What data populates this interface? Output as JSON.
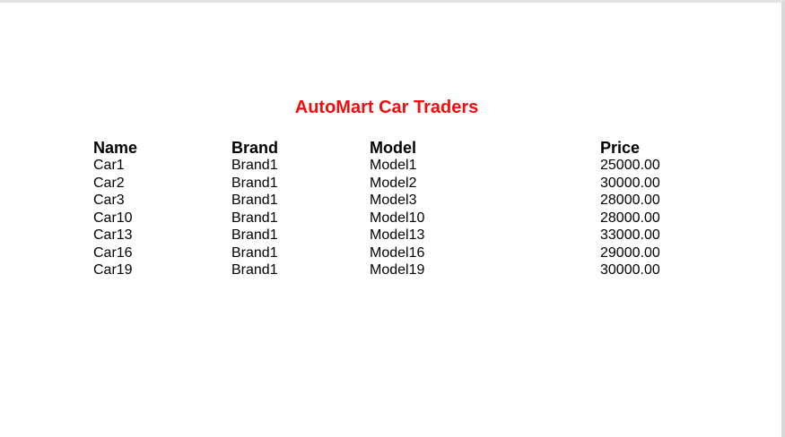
{
  "report": {
    "title": "AutoMart Car Traders",
    "title_color": "#f20c0c",
    "columns": {
      "name": "Name",
      "brand": "Brand",
      "model": "Model",
      "price": "Price"
    },
    "rows": [
      {
        "name": "Car1",
        "brand": "Brand1",
        "model": "Model1",
        "price": "25000.00"
      },
      {
        "name": "Car2",
        "brand": "Brand1",
        "model": "Model2",
        "price": "30000.00"
      },
      {
        "name": "Car3",
        "brand": "Brand1",
        "model": "Model3",
        "price": "28000.00"
      },
      {
        "name": "Car10",
        "brand": "Brand1",
        "model": "Model10",
        "price": "28000.00"
      },
      {
        "name": "Car13",
        "brand": "Brand1",
        "model": "Model13",
        "price": "33000.00"
      },
      {
        "name": "Car16",
        "brand": "Brand1",
        "model": "Model16",
        "price": "29000.00"
      },
      {
        "name": "Car19",
        "brand": "Brand1",
        "model": "Model19",
        "price": "30000.00"
      }
    ]
  }
}
